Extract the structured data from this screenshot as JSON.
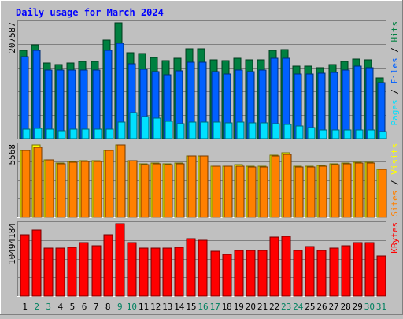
{
  "chart_data": {
    "type": "bar",
    "title": "Daily usage for March 2024",
    "categories": [
      "1",
      "2",
      "3",
      "4",
      "5",
      "6",
      "7",
      "8",
      "9",
      "10",
      "11",
      "12",
      "13",
      "14",
      "15",
      "16",
      "17",
      "18",
      "19",
      "20",
      "21",
      "22",
      "23",
      "24",
      "25",
      "26",
      "27",
      "28",
      "29",
      "30",
      "31"
    ],
    "weekend_days": [
      "2",
      "3",
      "9",
      "10",
      "16",
      "17",
      "23",
      "24",
      "30",
      "31"
    ],
    "panels": [
      {
        "id": "requests",
        "max_label": "207587",
        "ylim": [
          0,
          207587
        ],
        "legend": [
          {
            "text": "Pages",
            "color": "#00e0ff"
          },
          {
            "text": " / ",
            "color": "#000000"
          },
          {
            "text": "Files",
            "color": "#0060ff"
          },
          {
            "text": " / ",
            "color": "#000000"
          },
          {
            "text": "Hits",
            "color": "#008040"
          }
        ],
        "series": [
          {
            "name": "Hits",
            "color": "#008040",
            "values": [
              158800,
              167600,
              135300,
              133300,
              135300,
              138200,
              138200,
              176400,
              207587,
              153500,
              152500,
              145600,
              139700,
              144600,
              160300,
              160300,
              140700,
              139700,
              143600,
              141700,
              141700,
              158800,
              159800,
              130400,
              130400,
              127500,
              132400,
              138200,
              142600,
              141700,
              109400
            ]
          },
          {
            "name": "Files",
            "color": "#0060ff",
            "values": [
              146600,
              157800,
              123500,
              122500,
              123500,
              123500,
              122500,
              157800,
              170700,
              134300,
              124500,
              119600,
              114700,
              121500,
              137200,
              137200,
              120500,
              115600,
              123500,
              119600,
              123500,
              143600,
              143600,
              115600,
              115600,
              116600,
              118600,
              123500,
              129400,
              126500,
              99600
            ]
          },
          {
            "name": "Pages",
            "color": "#00e0ff",
            "values": [
              16700,
              18600,
              16700,
              14700,
              16700,
              16700,
              16700,
              17600,
              29400,
              46000,
              40100,
              37200,
              31400,
              26400,
              29400,
              29400,
              29400,
              28400,
              29400,
              28400,
              28400,
              27400,
              25500,
              22500,
              19600,
              15700,
              15700,
              15700,
              15700,
              15700,
              12700
            ]
          }
        ]
      },
      {
        "id": "visits",
        "max_label": "5568",
        "ylim": [
          0,
          5568
        ],
        "legend": [
          {
            "text": "Sites",
            "color": "#ff8000"
          },
          {
            "text": " / ",
            "color": "#000000"
          },
          {
            "text": "Visits",
            "color": "#ffff00"
          }
        ],
        "series": [
          {
            "name": "Visits",
            "color": "#ffff00",
            "values": [
              5149,
              5568,
              4435,
              4172,
              4278,
              4330,
              4330,
              5149,
              5568,
              4330,
              4120,
              4172,
              4120,
              4172,
              4697,
              4697,
              3962,
              3962,
              4067,
              3910,
              3910,
              4802,
              4960,
              3910,
              3910,
              4015,
              4120,
              4172,
              4225,
              4225,
              3700
            ]
          },
          {
            "name": "Sites",
            "color": "#ff8000",
            "values": [
              5149,
              5410,
              4435,
              4120,
              4225,
              4278,
              4278,
              5149,
              5568,
              4330,
              4067,
              4120,
              4067,
              4120,
              4697,
              4697,
              3910,
              3910,
              3962,
              3857,
              3857,
              4697,
              4855,
              3857,
              3857,
              3962,
              4067,
              4120,
              4172,
              4172,
              3700
            ]
          }
        ]
      },
      {
        "id": "kbytes",
        "max_label": "10494184",
        "ylim": [
          0,
          10494184
        ],
        "legend": [
          {
            "text": "KBytes",
            "color": "#ff0000"
          }
        ],
        "series": [
          {
            "name": "KBytes",
            "color": "#ff0000",
            "values": [
              8894000,
              9569000,
              6903000,
              6903000,
              7093000,
              7712000,
              7331000,
              8894000,
              10494184,
              7712000,
              6903000,
              6903000,
              6903000,
              7093000,
              8326000,
              8135000,
              6522000,
              6093000,
              6665000,
              6665000,
              6665000,
              8517000,
              8707000,
              6665000,
              7141000,
              6665000,
              6903000,
              7331000,
              7712000,
              7712000,
              5808000
            ]
          }
        ]
      }
    ]
  }
}
